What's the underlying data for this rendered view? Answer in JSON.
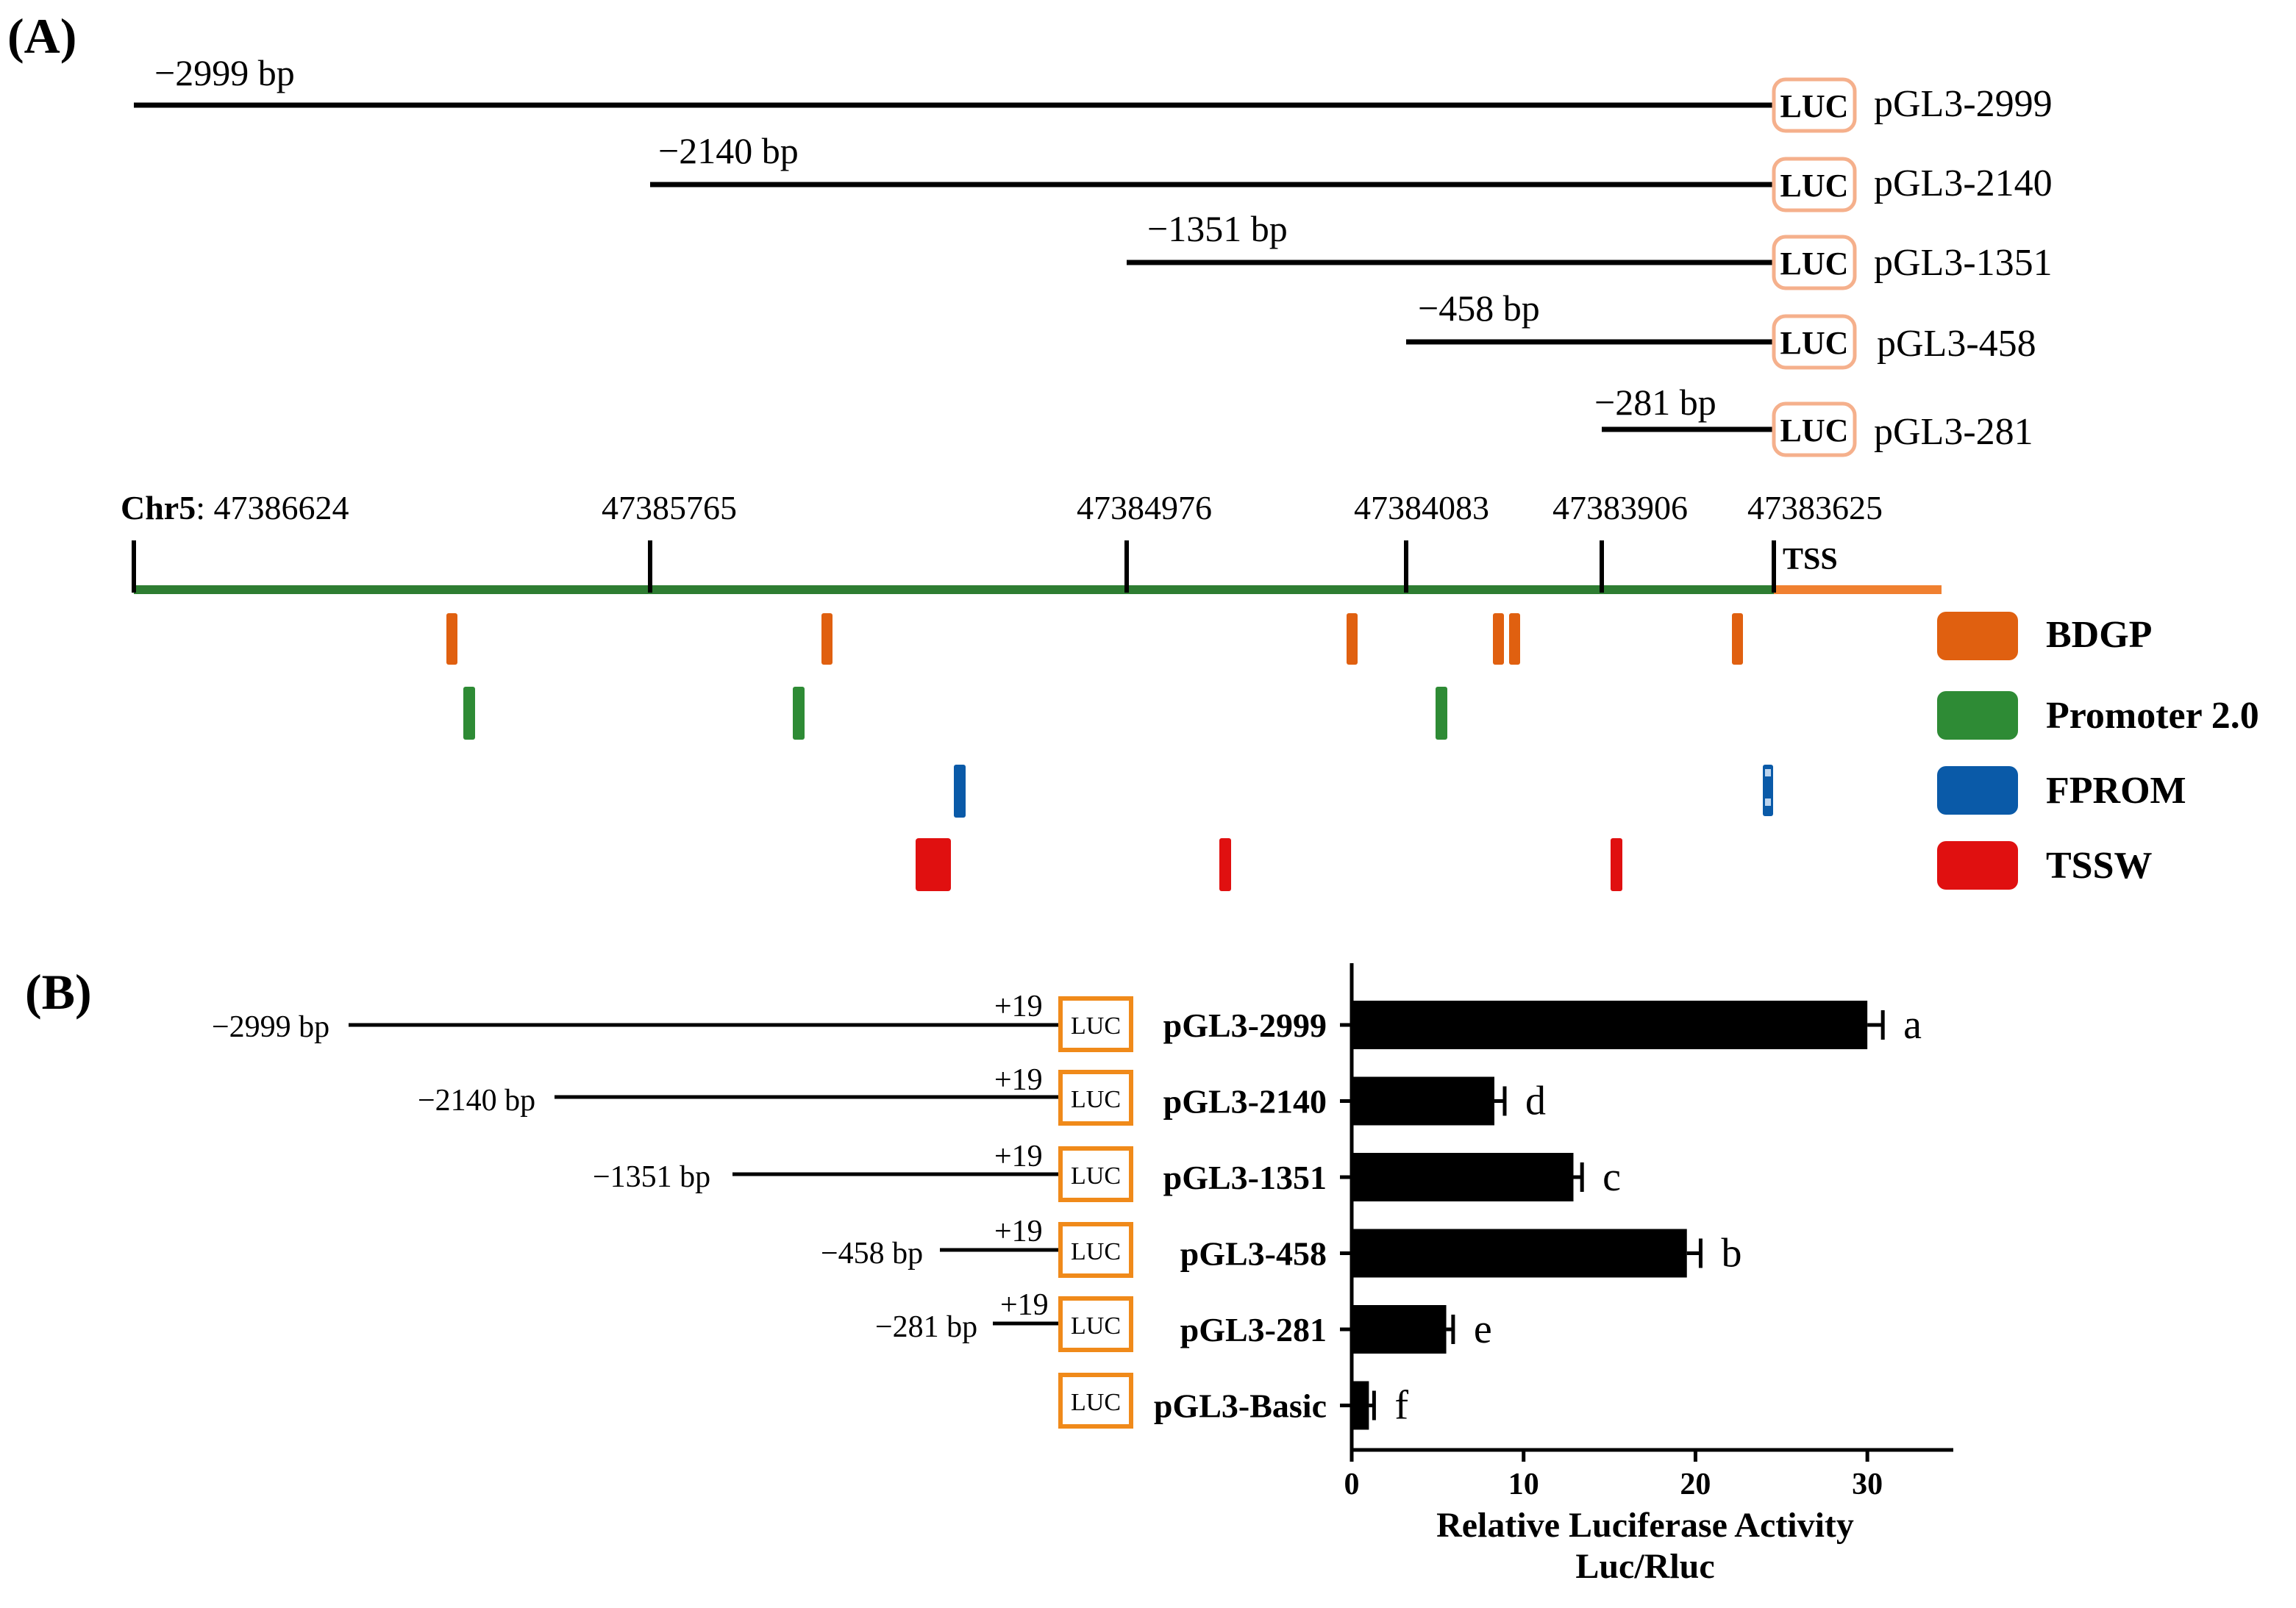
{
  "panel_a": {
    "label": "(A)",
    "constructs": [
      {
        "start_label": "−2999 bp",
        "luc": "LUC",
        "name": "pGL3-2999"
      },
      {
        "start_label": "−2140 bp",
        "luc": "LUC",
        "name": "pGL3-2140"
      },
      {
        "start_label": "−1351 bp",
        "luc": "LUC",
        "name": "pGL3-1351"
      },
      {
        "start_label": "−458 bp",
        "luc": "LUC",
        "name": "pGL3-458"
      },
      {
        "start_label": "−281 bp",
        "luc": "LUC",
        "name": "pGL3-281"
      }
    ],
    "chromosome": {
      "name": "Chr5",
      "first_coord": ": 47386624",
      "coords": [
        "47385765",
        "47384976",
        "47384083",
        "47383906",
        "47383625"
      ],
      "tss_label": "TSS",
      "promoter_color": "#2e7d32",
      "tss_color": "#f08030"
    },
    "legend": [
      {
        "name": "BDGP",
        "color": "#e06010"
      },
      {
        "name": "Promoter 2.0",
        "color": "#2e8b35"
      },
      {
        "name": "FPROM",
        "color": "#0a5aa8"
      },
      {
        "name": "TSSW",
        "color": "#e01010"
      }
    ]
  },
  "panel_b": {
    "label": "(B)",
    "plus_label": "+19",
    "luc_label": "LUC",
    "luc_color": "#f08a1a",
    "construct_starts": [
      "−2999 bp",
      "−2140 bp",
      "−1351 bp",
      "−458 bp",
      "−281 bp",
      ""
    ]
  },
  "chart_data": {
    "type": "bar",
    "orientation": "horizontal",
    "categories": [
      "pGL3-2999",
      "pGL3-2140",
      "pGL3-1351",
      "pGL3-458",
      "pGL3-281",
      "pGL3-Basic"
    ],
    "values": [
      30.0,
      8.3,
      12.9,
      19.5,
      5.5,
      1.0
    ],
    "errors": [
      0.9,
      0.6,
      0.5,
      0.8,
      0.4,
      0.3
    ],
    "significance": [
      "a",
      "d",
      "c",
      "b",
      "e",
      "f"
    ],
    "xlabel": "Relative Luciferase Activity",
    "xlabel2": "Luc/Rluc",
    "xlim": [
      0,
      35
    ],
    "xticks": [
      0,
      10,
      20,
      30
    ],
    "bar_color": "#000000"
  }
}
